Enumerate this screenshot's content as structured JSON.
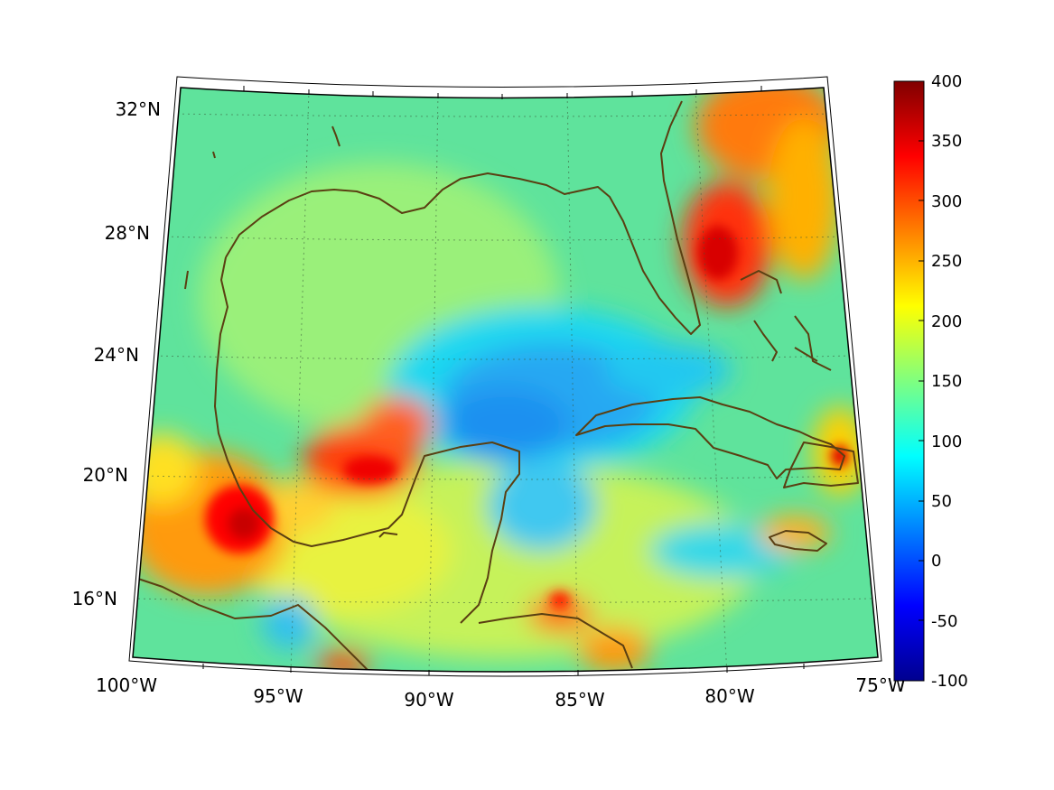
{
  "map": {
    "projection": "conic",
    "lon_range": [
      -100,
      -75
    ],
    "lat_range": [
      14,
      33
    ],
    "lon_labels": [
      "100°W",
      "95°W",
      "90°W",
      "85°W",
      "80°W",
      "75°W"
    ],
    "lat_labels": [
      "32°N",
      "28°N",
      "24°N",
      "20°N",
      "16°N"
    ],
    "coastline_color": "#5a3f12",
    "grid": "dotted"
  },
  "colorbar": {
    "colormap": "jet",
    "ticks": [
      "400",
      "350",
      "300",
      "250",
      "200",
      "150",
      "100",
      "50",
      "0",
      "-50",
      "-100"
    ],
    "range": [
      -100,
      400
    ]
  }
}
